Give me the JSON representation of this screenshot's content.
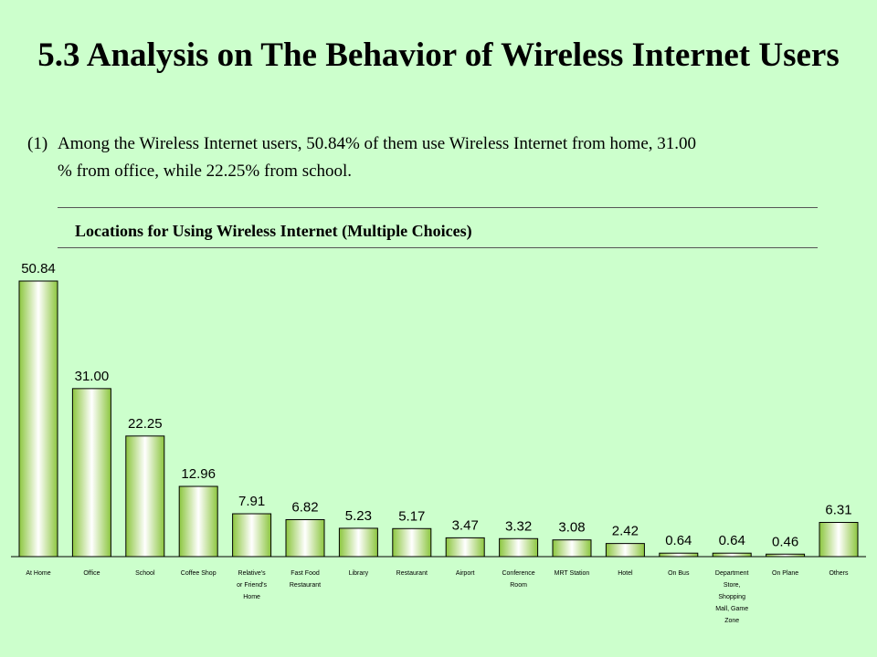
{
  "slide": {
    "title": "5.3 Analysis on The Behavior of Wireless Internet Users",
    "intro_num": "(1)",
    "intro_line1": "Among the Wireless Internet users, 50.84% of them use Wireless Internet from home, 31.00",
    "intro_line2": "% from office, while 22.25% from school."
  },
  "chart_data": {
    "type": "bar",
    "title": "Locations for Using Wireless Internet (Multiple Choices)",
    "xlabel": "",
    "ylabel": "",
    "ylim": [
      0,
      55
    ],
    "grid": false,
    "legend": "none",
    "categories": [
      "At Home",
      "Office",
      "School",
      "Coffee Shop",
      "Relative's or Friend's Home",
      "Fast Food Restaurant",
      "Library",
      "Restaurant",
      "Airport",
      "Conference Room",
      "MRT Station",
      "Hotel",
      "On Bus",
      "Department Store, Shopping Mall, Game Zone",
      "On Plane",
      "Others"
    ],
    "values": [
      50.84,
      31.0,
      22.25,
      12.96,
      7.91,
      6.82,
      5.23,
      5.17,
      3.47,
      3.32,
      3.08,
      2.42,
      0.64,
      0.64,
      0.46,
      6.31
    ],
    "value_labels": [
      "50.84",
      "31.00",
      "22.25",
      "12.96",
      "7.91",
      "6.82",
      "5.23",
      "5.17",
      "3.47",
      "3.32",
      "3.08",
      "2.42",
      "0.64",
      "0.64",
      "0.46",
      "6.31"
    ],
    "colors": {
      "bar_edge": "#8cc63f",
      "bar_center": "#ffffff",
      "bar_outline": "#000000"
    }
  }
}
